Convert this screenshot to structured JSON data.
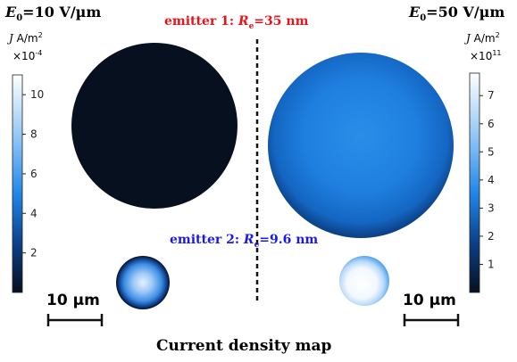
{
  "left_panel": {
    "field_symbol": "E",
    "field_subscript": "0",
    "field_value": "=10 V/µm",
    "cbar_symbol": "J",
    "cbar_unit": "A/m",
    "cbar_unit_exp": "2",
    "cbar_multiplier": "×10",
    "cbar_multiplier_exp": "-4",
    "cbar_ticks": [
      "10",
      "8",
      "6",
      "4",
      "2"
    ],
    "cbar_tick_values": [
      10,
      8,
      6,
      4,
      2
    ],
    "cbar_range": [
      0,
      11
    ],
    "scalebar_label": "10 µm"
  },
  "right_panel": {
    "field_symbol": "E",
    "field_subscript": "0",
    "field_value": "=50 V/µm",
    "cbar_symbol": "J",
    "cbar_unit": "A/m",
    "cbar_unit_exp": "2",
    "cbar_multiplier": "×10",
    "cbar_multiplier_exp": "11",
    "cbar_ticks": [
      "7",
      "6",
      "5",
      "4",
      "3",
      "2",
      "1"
    ],
    "cbar_tick_values": [
      7,
      6,
      5,
      4,
      3,
      2,
      1
    ],
    "cbar_range": [
      0,
      7.8
    ],
    "scalebar_label": "10 µm"
  },
  "emitter1": {
    "prefix": "emitter 1: ",
    "symbol": "R",
    "subscript": "e",
    "value": "=35 nm",
    "color": "#e8141c"
  },
  "emitter2": {
    "prefix": "emitter 2: ",
    "symbol": "R",
    "subscript": "e",
    "value": "=9.6 nm",
    "color": "#1a1ae6"
  },
  "caption": "Current density map",
  "colors": {
    "map_dark": "#07101f",
    "map_blue": "#1f86e8",
    "map_white": "#ffffff",
    "divider": "#111111"
  },
  "icons": [
    "circular-emitter-map"
  ]
}
